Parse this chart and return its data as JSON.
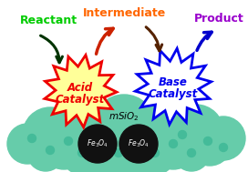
{
  "bg_color": "#ffffff",
  "reactant_label": "Reactant",
  "reactant_color": "#00cc00",
  "intermediate_label": "Intermediate",
  "intermediate_color": "#ff6600",
  "product_label": "Product",
  "product_color": "#9900cc",
  "acid_label_1": "Acid",
  "acid_label_2": "Catalyst",
  "acid_color": "#ee0000",
  "acid_fill": "#ffff99",
  "base_label_1": "Base",
  "base_label_2": "Catalyst",
  "base_color": "#0000ee",
  "base_fill": "#ffffff",
  "msio2_color": "#66ccaa",
  "msio2_dot_color": "#44bb99",
  "fe_bg": "#111111",
  "fe_fg": "#ffffff",
  "arrow_red": "#cc2200",
  "arrow_brown": "#552200",
  "arrow_black": "#111111",
  "arrow_blue": "#0000cc",
  "arrow_green": "#006600"
}
